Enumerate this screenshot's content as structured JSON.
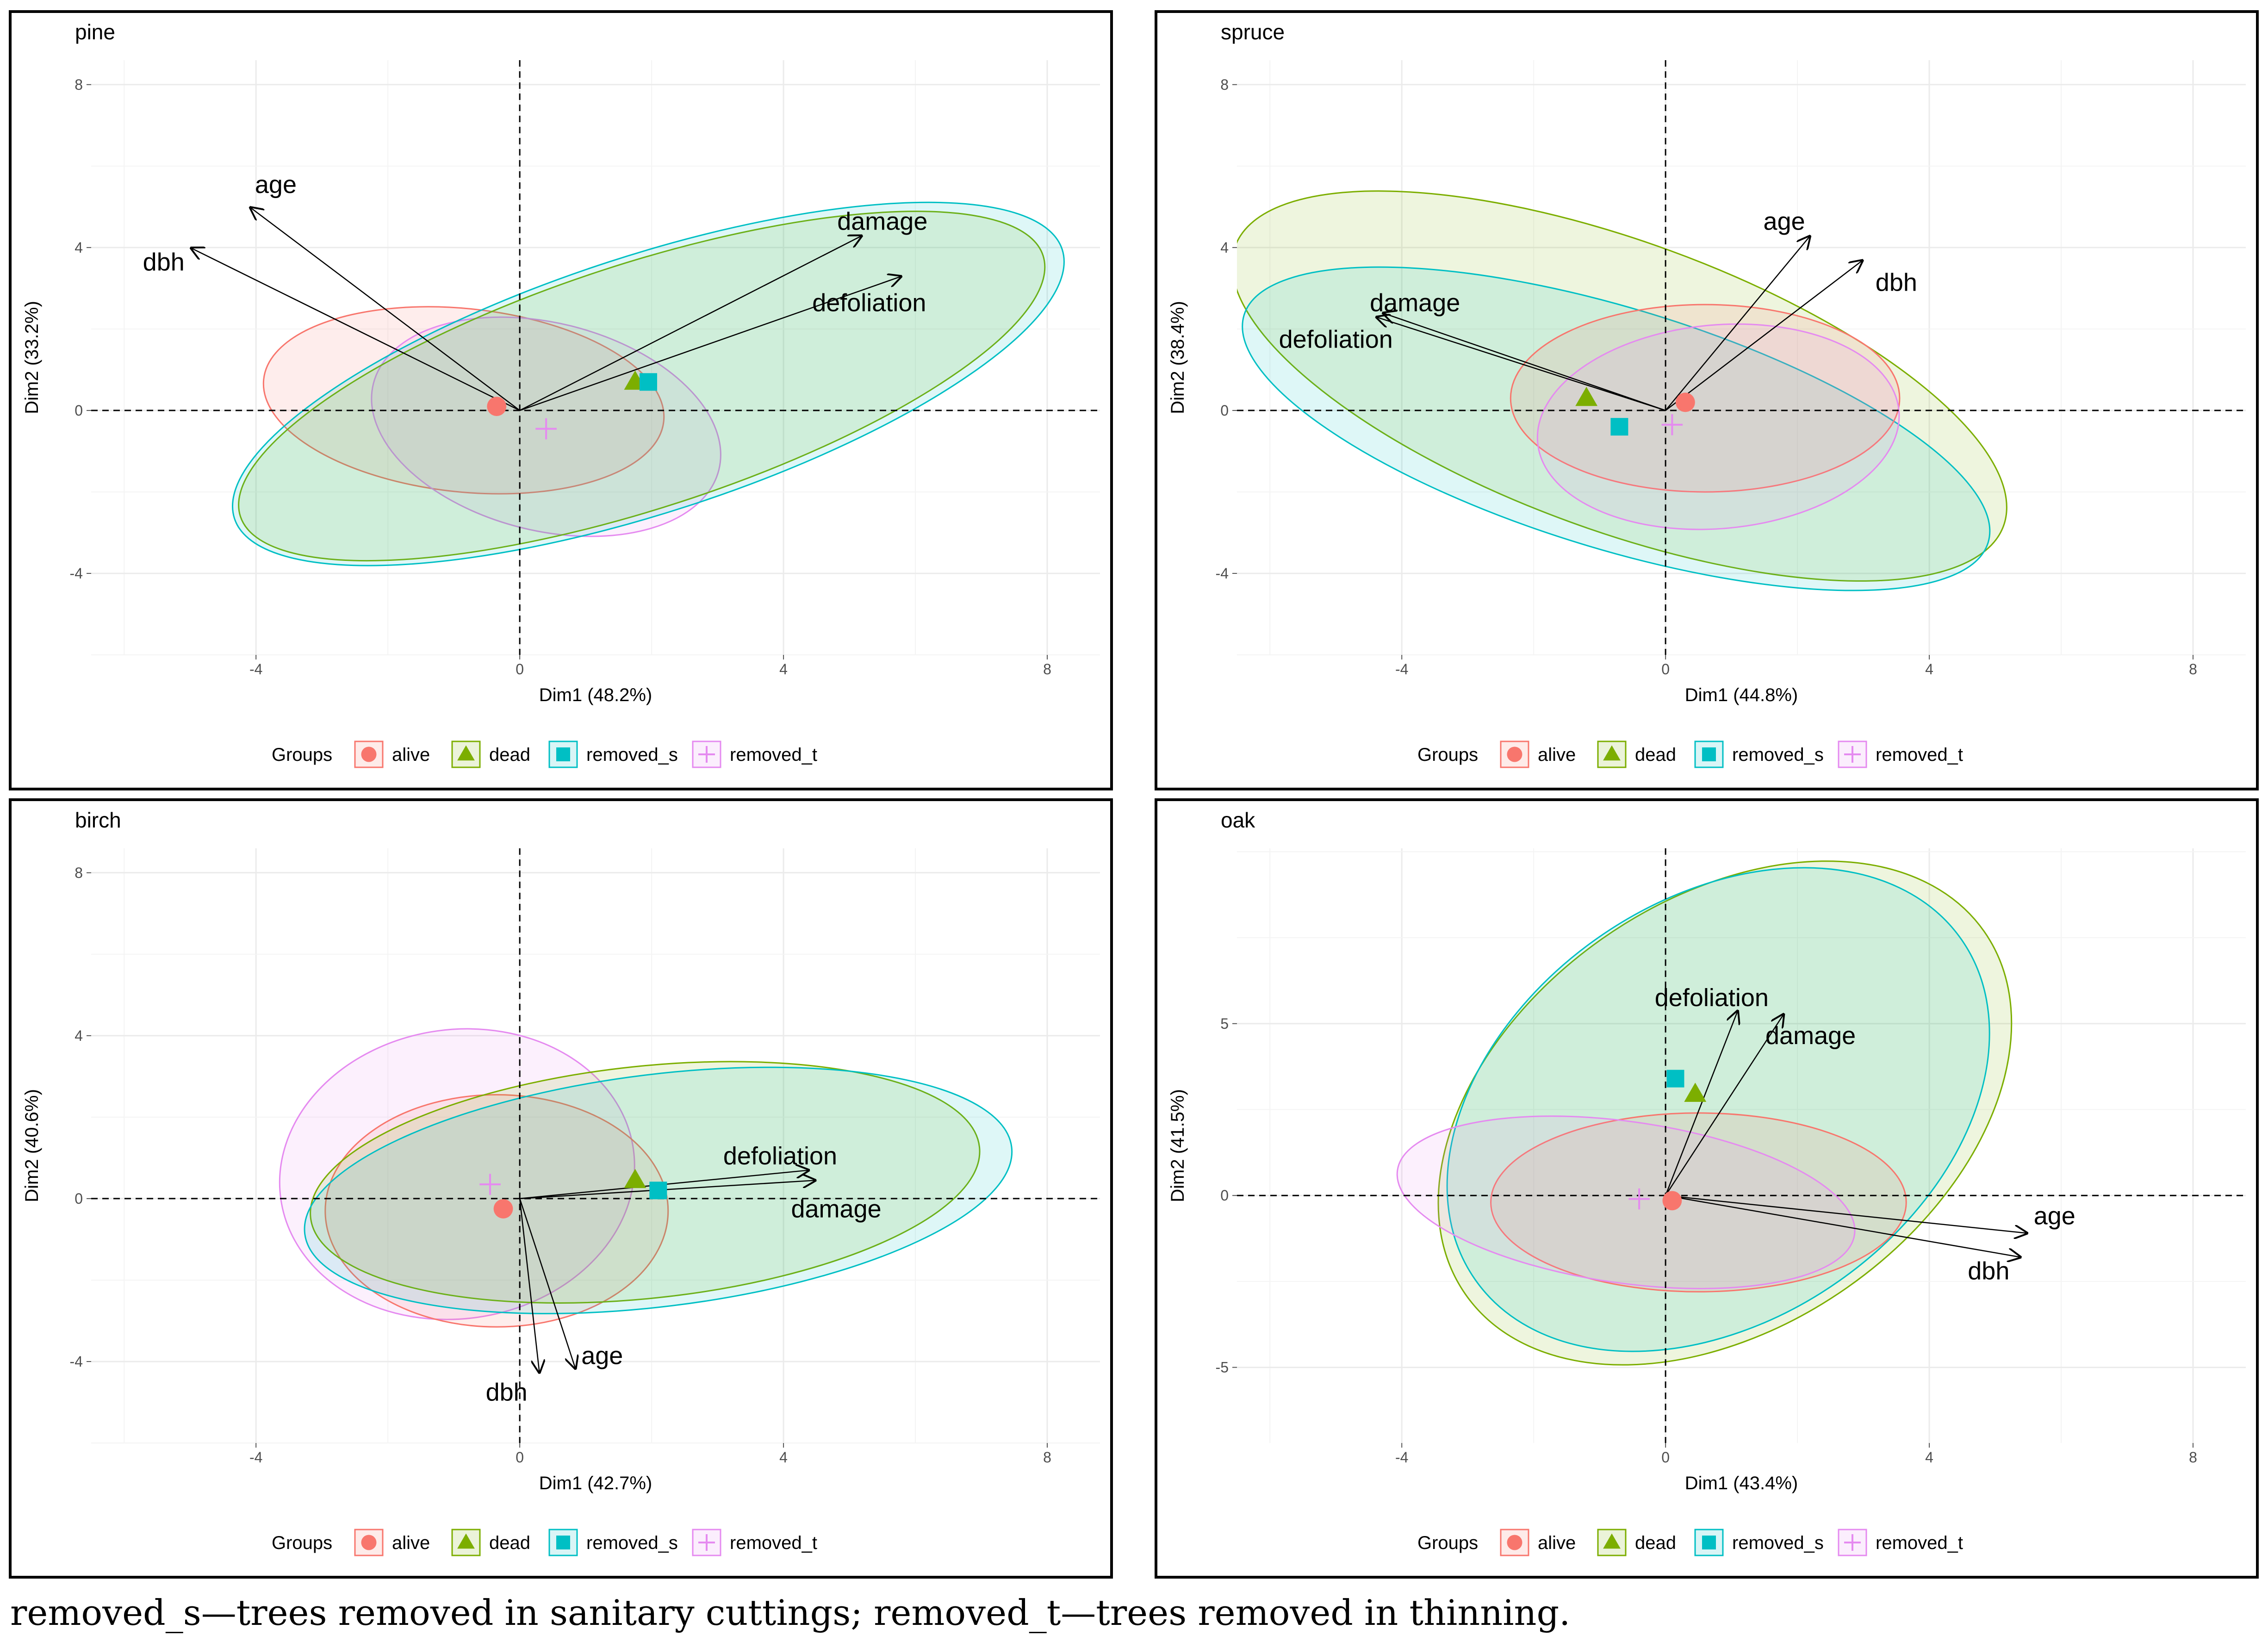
{
  "caption": "removed_s—trees removed in sanitary cuttings; removed_t—trees removed in thinning.",
  "legend": {
    "title": "Groups",
    "items": [
      {
        "key": "alive",
        "label": "alive",
        "color": "#F8766D",
        "fill": "#F8766D",
        "shape": "circle"
      },
      {
        "key": "dead",
        "label": "dead",
        "color": "#7CAE00",
        "fill": "#7CAE00",
        "shape": "triangle"
      },
      {
        "key": "removed_s",
        "label": "removed_s",
        "color": "#00BFC4",
        "fill": "#00BFC4",
        "shape": "square"
      },
      {
        "key": "removed_t",
        "label": "removed_t",
        "color": "#E58AF0",
        "fill": "#E58AF0",
        "shape": "plus"
      }
    ]
  },
  "chart_data": [
    {
      "type": "scatter",
      "title": "pine",
      "xlabel": "Dim1 (48.2%)",
      "ylabel": "Dim2 (33.2%)",
      "xlim": [
        -6.5,
        8.8
      ],
      "ylim": [
        -6.0,
        8.6
      ],
      "xticks": [
        -4,
        0,
        4,
        8
      ],
      "yticks": [
        -4,
        0,
        4,
        8
      ],
      "ellipses": [
        {
          "group": "alive",
          "cx": -0.85,
          "cy": 0.25,
          "rx": 3.05,
          "ry": 2.25,
          "angle": -6
        },
        {
          "group": "removed_t",
          "cx": 0.4,
          "cy": -0.4,
          "rx": 2.7,
          "ry": 2.55,
          "angle": -14
        },
        {
          "group": "dead",
          "cx": 1.85,
          "cy": 0.6,
          "rx": 6.4,
          "ry": 3.0,
          "angle": 18
        },
        {
          "group": "removed_s",
          "cx": 1.95,
          "cy": 0.65,
          "rx": 6.6,
          "ry": 3.15,
          "angle": 18
        }
      ],
      "centroids": [
        {
          "group": "alive",
          "x": -0.35,
          "y": 0.1
        },
        {
          "group": "dead",
          "x": 1.75,
          "y": 0.7
        },
        {
          "group": "removed_s",
          "x": 1.95,
          "y": 0.7
        },
        {
          "group": "removed_t",
          "x": 0.4,
          "y": -0.45
        }
      ],
      "arrows": [
        {
          "label": "age",
          "x": -4.1,
          "y": 5.0,
          "lx": -3.7,
          "ly": 5.5
        },
        {
          "label": "dbh",
          "x": -5.0,
          "y": 4.0,
          "lx": -5.4,
          "ly": 3.6
        },
        {
          "label": "damage",
          "x": 5.2,
          "y": 4.3,
          "lx": 5.5,
          "ly": 4.6
        },
        {
          "label": "defoliation",
          "x": 5.8,
          "y": 3.3,
          "lx": 5.3,
          "ly": 2.6
        }
      ]
    },
    {
      "type": "scatter",
      "title": "spruce",
      "xlabel": "Dim1 (44.8%)",
      "ylabel": "Dim2 (38.4%)",
      "xlim": [
        -6.5,
        8.8
      ],
      "ylim": [
        -6.0,
        8.6
      ],
      "xticks": [
        -4,
        0,
        4,
        8
      ],
      "yticks": [
        -4,
        0,
        4,
        8
      ],
      "ellipses": [
        {
          "group": "dead",
          "cx": -0.7,
          "cy": 0.6,
          "rx": 6.2,
          "ry": 3.55,
          "angle": -20
        },
        {
          "group": "removed_s",
          "cx": -0.75,
          "cy": -0.45,
          "rx": 5.9,
          "ry": 2.95,
          "angle": -17
        },
        {
          "group": "alive",
          "cx": 0.6,
          "cy": 0.3,
          "rx": 2.95,
          "ry": 2.3,
          "angle": 0
        },
        {
          "group": "removed_t",
          "cx": 0.8,
          "cy": -0.4,
          "rx": 2.75,
          "ry": 2.5,
          "angle": 5
        }
      ],
      "centroids": [
        {
          "group": "alive",
          "x": 0.3,
          "y": 0.2
        },
        {
          "group": "dead",
          "x": -1.2,
          "y": 0.3
        },
        {
          "group": "removed_s",
          "x": -0.7,
          "y": -0.4
        },
        {
          "group": "removed_t",
          "x": 0.1,
          "y": -0.35
        }
      ],
      "arrows": [
        {
          "label": "age",
          "x": 2.2,
          "y": 4.3,
          "lx": 1.8,
          "ly": 4.6
        },
        {
          "label": "dbh",
          "x": 3.0,
          "y": 3.7,
          "lx": 3.5,
          "ly": 3.1
        },
        {
          "label": "damage",
          "x": -4.3,
          "y": 2.4,
          "lx": -3.8,
          "ly": 2.6
        },
        {
          "label": "defoliation",
          "x": -4.4,
          "y": 2.3,
          "lx": -5.0,
          "ly": 1.7
        }
      ]
    },
    {
      "type": "scatter",
      "title": "birch",
      "xlabel": "Dim1 (42.7%)",
      "ylabel": "Dim2 (40.6%)",
      "xlim": [
        -6.5,
        8.8
      ],
      "ylim": [
        -6.0,
        8.6
      ],
      "xticks": [
        -4,
        0,
        4,
        8
      ],
      "yticks": [
        -4,
        0,
        4,
        8
      ],
      "ellipses": [
        {
          "group": "removed_t",
          "cx": -0.95,
          "cy": 0.6,
          "rx": 2.7,
          "ry": 3.55,
          "angle": 8
        },
        {
          "group": "alive",
          "cx": -0.35,
          "cy": -0.3,
          "rx": 2.6,
          "ry": 2.85,
          "angle": 0
        },
        {
          "group": "dead",
          "cx": 1.9,
          "cy": 0.4,
          "rx": 5.1,
          "ry": 2.85,
          "angle": 6
        },
        {
          "group": "removed_s",
          "cx": 2.1,
          "cy": 0.2,
          "rx": 5.4,
          "ry": 2.85,
          "angle": 7
        }
      ],
      "centroids": [
        {
          "group": "alive",
          "x": -0.25,
          "y": -0.25
        },
        {
          "group": "dead",
          "x": 1.75,
          "y": 0.45
        },
        {
          "group": "removed_s",
          "x": 2.1,
          "y": 0.2
        },
        {
          "group": "removed_t",
          "x": -0.45,
          "y": 0.35
        }
      ],
      "arrows": [
        {
          "label": "age",
          "x": 0.85,
          "y": -4.2,
          "lx": 1.25,
          "ly": -3.9
        },
        {
          "label": "dbh",
          "x": 0.3,
          "y": -4.3,
          "lx": -0.2,
          "ly": -4.8
        },
        {
          "label": "damage",
          "x": 4.5,
          "y": 0.45,
          "lx": 4.8,
          "ly": -0.3
        },
        {
          "label": "defoliation",
          "x": 4.4,
          "y": 0.7,
          "lx": 3.95,
          "ly": 1.0
        }
      ]
    },
    {
      "type": "scatter",
      "title": "oak",
      "xlabel": "Dim1 (43.4%)",
      "ylabel": "Dim2 (41.5%)",
      "xlim": [
        -6.5,
        8.8
      ],
      "ylim": [
        -7.2,
        10.1
      ],
      "xticks": [
        -4,
        0,
        4,
        8
      ],
      "yticks": [
        -5,
        0,
        5
      ],
      "ellipses": [
        {
          "group": "dead",
          "cx": 0.9,
          "cy": 2.4,
          "rx": 4.8,
          "ry": 6.2,
          "angle": 35
        },
        {
          "group": "removed_s",
          "cx": 0.8,
          "cy": 2.5,
          "rx": 4.5,
          "ry": 6.1,
          "angle": 35
        },
        {
          "group": "alive",
          "cx": 0.5,
          "cy": -0.2,
          "rx": 3.15,
          "ry": 2.6,
          "angle": 0
        },
        {
          "group": "removed_t",
          "cx": -0.6,
          "cy": -0.2,
          "rx": 3.5,
          "ry": 2.35,
          "angle": -8
        }
      ],
      "centroids": [
        {
          "group": "alive",
          "x": 0.1,
          "y": -0.15
        },
        {
          "group": "dead",
          "x": 0.45,
          "y": 2.95
        },
        {
          "group": "removed_s",
          "x": 0.15,
          "y": 3.4
        },
        {
          "group": "removed_t",
          "x": -0.4,
          "y": -0.1
        }
      ],
      "arrows": [
        {
          "label": "age",
          "x": 5.5,
          "y": -1.1,
          "lx": 5.9,
          "ly": -0.65
        },
        {
          "label": "dbh",
          "x": 5.4,
          "y": -1.8,
          "lx": 4.9,
          "ly": -2.25
        },
        {
          "label": "damage",
          "x": 1.8,
          "y": 5.3,
          "lx": 2.2,
          "ly": 4.6
        },
        {
          "label": "defoliation",
          "x": 1.1,
          "y": 5.4,
          "lx": 0.7,
          "ly": 5.7
        }
      ]
    }
  ]
}
